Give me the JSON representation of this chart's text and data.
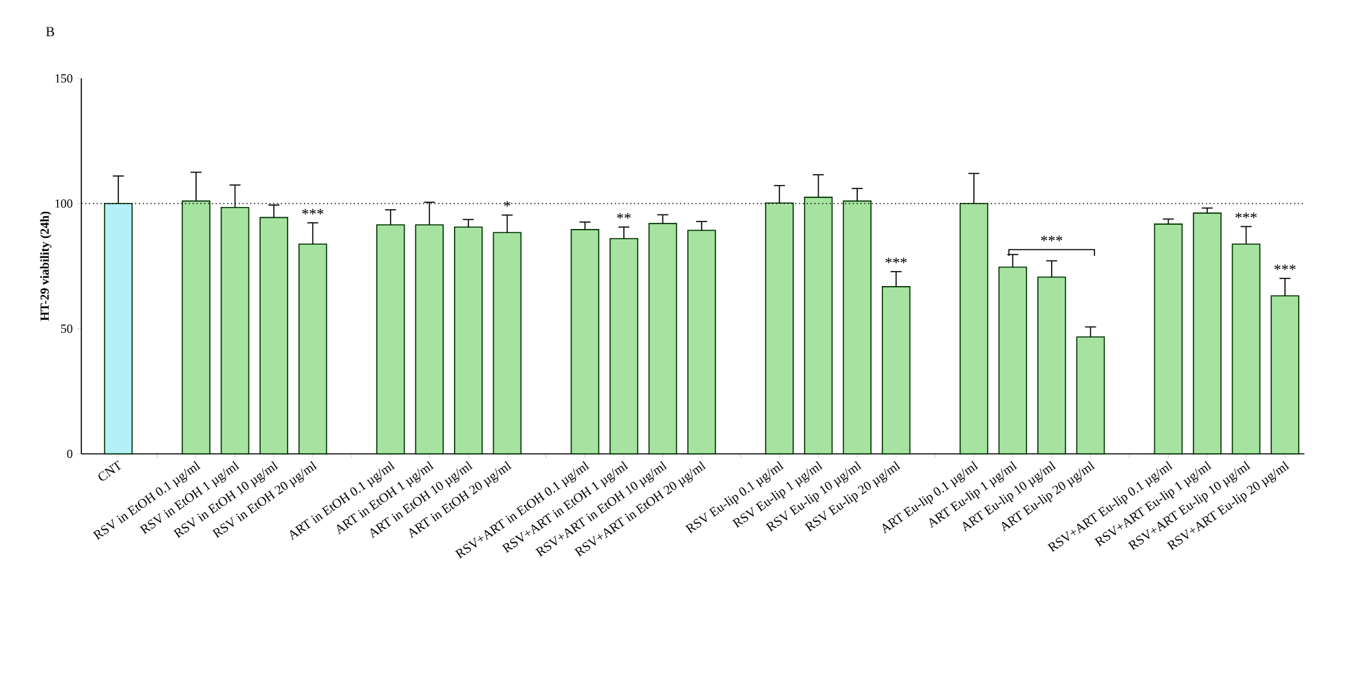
{
  "chart_data": {
    "type": "bar",
    "title": "B",
    "ylabel": "HT-29 viability (24h)",
    "categories": [
      "CNT",
      null,
      "RSV in EtOH 0.1 µg/ml",
      "RSV in EtOH 1 µg/ml",
      "RSV in EtOH 10 µg/ml",
      "RSV in EtOH 20 µg/ml",
      null,
      "ART in EtOH 0.1 µg/ml",
      "ART in EtOH 1 µg/ml",
      "ART in EtOH 10 µg/ml",
      "ART in EtOH 20 µg/ml",
      null,
      "RSV+ART in EtOH 0.1 µg/ml",
      "RSV+ART in EtOH 1 µg/ml",
      "RSV+ART in EtOH 10 µg/ml",
      "RSV+ART in EtOH 20 µg/ml",
      null,
      "RSV Eu-lip 0.1 µg/ml",
      "RSV Eu-lip 1 µg/ml",
      "RSV Eu-lip 10 µg/ml",
      "RSV Eu-lip 20 µg/ml",
      null,
      "ART Eu-lip 0.1 µg/ml",
      "ART Eu-lip 1 µg/ml",
      "ART Eu-lip 10 µg/ml",
      "ART Eu-lip 20 µg/ml",
      null,
      "RSV+ART Eu-lip 0.1 µg/ml",
      "RSV+ART Eu-lip 1 µg/ml",
      "RSV+ART Eu-lip 10 µg/ml",
      "RSV+ART Eu-lip 20 µg/ml"
    ],
    "values": [
      100,
      null,
      101,
      98.4,
      94.4,
      83.8,
      null,
      91.5,
      91.5,
      90.6,
      88.4,
      null,
      89.6,
      86,
      92,
      89.3,
      null,
      100.2,
      102.5,
      101,
      66.8,
      null,
      100,
      74.6,
      70.6,
      46.7,
      null,
      91.8,
      96.2,
      83.8,
      63.1
    ],
    "errors": [
      11,
      null,
      11.5,
      9,
      5,
      8.5,
      null,
      6,
      9,
      3,
      7,
      null,
      3,
      4.6,
      3.5,
      3.5,
      null,
      7,
      9,
      5,
      6,
      null,
      12,
      5,
      6.5,
      4,
      null,
      2,
      2,
      7,
      7
    ],
    "colors": [
      "#b3f0f7",
      null,
      "#a6e3a0",
      "#a6e3a0",
      "#a6e3a0",
      "#a6e3a0",
      null,
      "#a6e3a0",
      "#a6e3a0",
      "#a6e3a0",
      "#a6e3a0",
      null,
      "#a6e3a0",
      "#a6e3a0",
      "#a6e3a0",
      "#a6e3a0",
      null,
      "#a6e3a0",
      "#a6e3a0",
      "#a6e3a0",
      "#a6e3a0",
      null,
      "#a6e3a0",
      "#a6e3a0",
      "#a6e3a0",
      "#a6e3a0",
      null,
      "#a6e3a0",
      "#a6e3a0",
      "#a6e3a0",
      "#a6e3a0"
    ],
    "ylim": [
      0,
      150
    ],
    "yticks": [
      0,
      50,
      100,
      150
    ],
    "ref_lines": [
      {
        "axis": "y",
        "value": 100,
        "line_style": "dotted"
      }
    ],
    "value_labels": [
      null,
      null,
      null,
      null,
      null,
      "***",
      null,
      null,
      null,
      null,
      "*",
      null,
      null,
      "**",
      null,
      null,
      null,
      null,
      null,
      null,
      "***",
      null,
      null,
      null,
      null,
      null,
      null,
      null,
      null,
      "***",
      "***"
    ],
    "annotations": [
      "***"
    ]
  }
}
